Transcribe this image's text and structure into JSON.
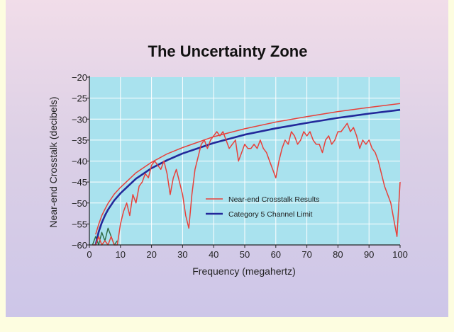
{
  "chart_data": {
    "type": "line",
    "title": "The Uncertainty Zone",
    "xlabel": "Frequency (megahertz)",
    "ylabel": "Near-end Crosstalk (decibels)",
    "xlim": [
      0,
      100
    ],
    "ylim": [
      -60,
      -20
    ],
    "xticks": [
      0,
      10,
      20,
      30,
      40,
      50,
      60,
      70,
      80,
      90,
      100
    ],
    "yticks": [
      -20,
      -25,
      -30,
      -35,
      -40,
      -45,
      -50,
      -55,
      -60
    ],
    "grid": true,
    "legend_position": "bottom-right",
    "plot_background": "#a9e2ee",
    "series": [
      {
        "name": "Near-end Crosstalk Results",
        "color": "#e8403a",
        "x": [
          1,
          2,
          3,
          4,
          5,
          6,
          7,
          8,
          9,
          10,
          11,
          12,
          13,
          14,
          15,
          16,
          17,
          18,
          19,
          20,
          21,
          22,
          23,
          24,
          25,
          26,
          27,
          28,
          29,
          30,
          31,
          32,
          33,
          34,
          35,
          36,
          37,
          38,
          39,
          40,
          41,
          42,
          43,
          44,
          45,
          46,
          47,
          48,
          49,
          50,
          51,
          52,
          53,
          54,
          55,
          56,
          57,
          58,
          59,
          60,
          61,
          62,
          63,
          64,
          65,
          66,
          67,
          68,
          69,
          70,
          71,
          72,
          73,
          74,
          75,
          76,
          77,
          78,
          79,
          80,
          81,
          82,
          83,
          84,
          85,
          86,
          87,
          88,
          89,
          90,
          91,
          92,
          93,
          94,
          95,
          96,
          97,
          98,
          99,
          100
        ],
        "y": [
          -60,
          -60,
          -58,
          -60,
          -59,
          -60,
          -58,
          -60,
          -60,
          -55,
          -52,
          -50,
          -53,
          -48,
          -50,
          -46,
          -45,
          -43,
          -44,
          -41,
          -40,
          -41,
          -42,
          -40,
          -43,
          -48,
          -44,
          -42,
          -45,
          -48,
          -53,
          -56,
          -48,
          -42,
          -39,
          -36,
          -35,
          -37,
          -35,
          -34,
          -33,
          -34,
          -33,
          -35,
          -37,
          -36,
          -35,
          -40,
          -38,
          -36,
          -37,
          -37,
          -36,
          -37,
          -35,
          -37,
          -38,
          -40,
          -42,
          -44,
          -40,
          -37,
          -35,
          -36,
          -33,
          -34,
          -36,
          -35,
          -33,
          -34,
          -33,
          -35,
          -36,
          -36,
          -38,
          -35,
          -34,
          -36,
          -35,
          -33,
          -33,
          -32,
          -31,
          -33,
          -32,
          -34,
          -37,
          -35,
          -36,
          -35,
          -37,
          -38,
          -40,
          -43,
          -46,
          -48,
          -50,
          -54,
          -58,
          -45
        ]
      },
      {
        "name": "Category 5 Channel Limit",
        "color": "#22289a",
        "x": [
          2,
          3,
          4,
          5,
          6,
          8,
          10,
          15,
          20,
          25,
          30,
          40,
          50,
          60,
          70,
          80,
          90,
          100
        ],
        "y": [
          -60,
          -56.9,
          -54.7,
          -53.0,
          -51.6,
          -49.4,
          -47.7,
          -44.2,
          -41.7,
          -39.8,
          -38.2,
          -35.7,
          -33.7,
          -32.2,
          -30.9,
          -29.7,
          -28.7,
          -27.8
        ]
      },
      {
        "name": "",
        "color": "#e8403a",
        "x": [
          2,
          3,
          4,
          5,
          6,
          8,
          10,
          15,
          20,
          25,
          30,
          40,
          50,
          60,
          70,
          80,
          90,
          100
        ],
        "y": [
          -57.5,
          -55.1,
          -53.0,
          -51.5,
          -50.1,
          -47.9,
          -46.3,
          -42.8,
          -40.3,
          -38.3,
          -36.8,
          -34.2,
          -32.3,
          -30.7,
          -29.4,
          -28.2,
          -27.2,
          -26.3
        ]
      },
      {
        "name": "",
        "color": "#2f6a44",
        "x": [
          1,
          2,
          3,
          4,
          5,
          6,
          7,
          8,
          9
        ],
        "y": [
          -60,
          -58,
          -60,
          -57,
          -59,
          -56,
          -58,
          -60,
          -59
        ]
      }
    ]
  }
}
